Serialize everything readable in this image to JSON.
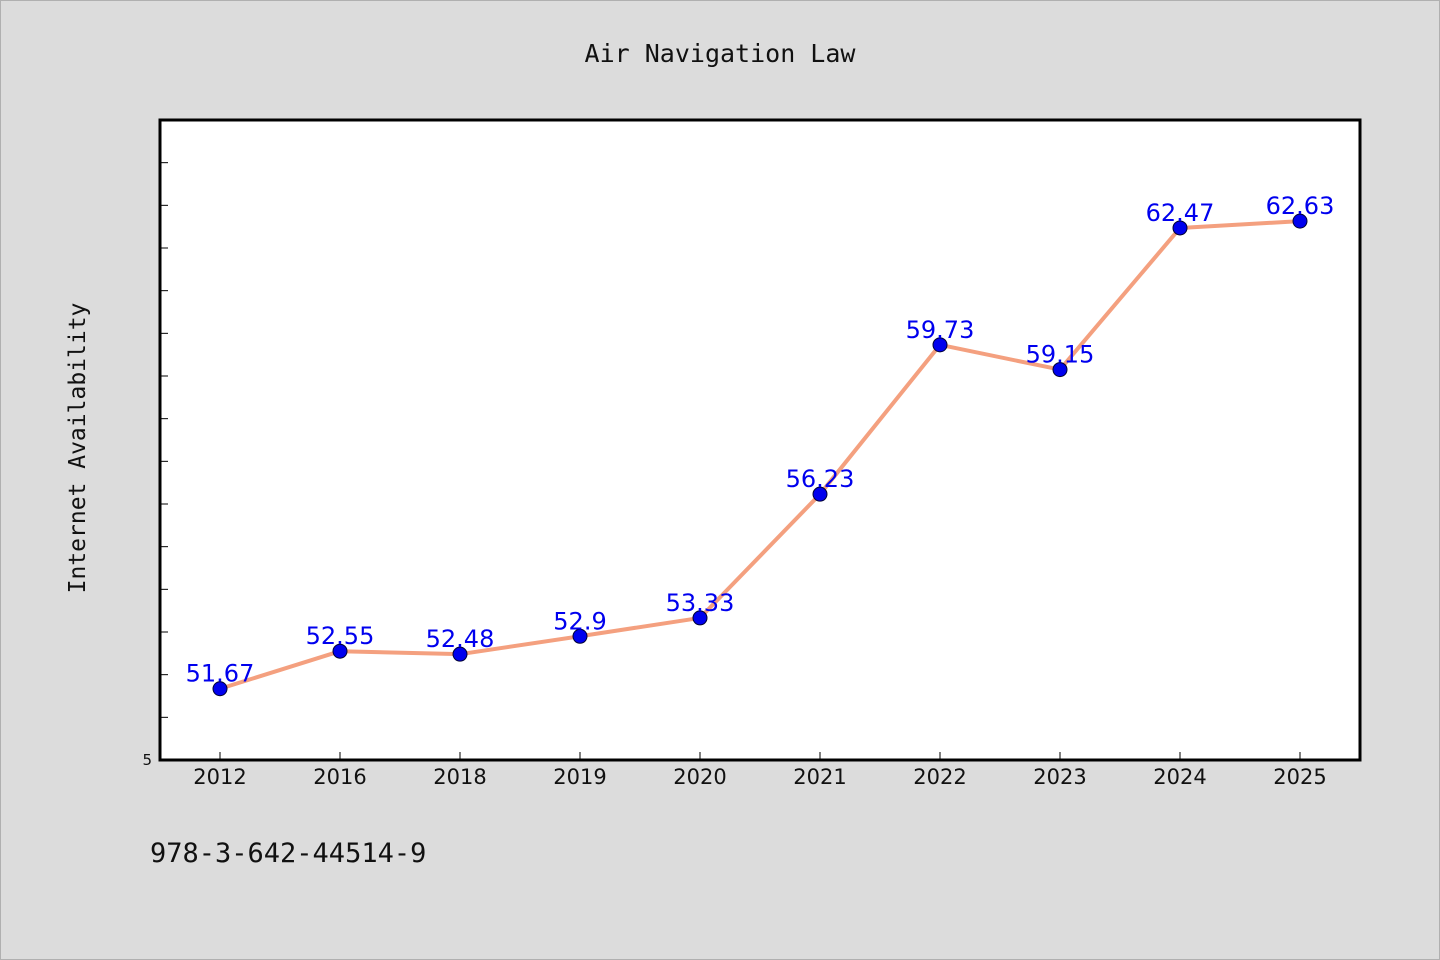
{
  "chart_data": {
    "type": "line",
    "title": "Air Navigation Law",
    "xlabel": "",
    "ylabel": "Internet Availability",
    "categories": [
      "2012",
      "2016",
      "2018",
      "2019",
      "2020",
      "2021",
      "2022",
      "2023",
      "2024",
      "2025"
    ],
    "series": [
      {
        "values": [
          51.67,
          52.55,
          52.48,
          52.9,
          53.33,
          56.23,
          59.73,
          59.15,
          62.47,
          62.63
        ],
        "line_color": "#f4a07f",
        "marker_color": "#0000ee"
      }
    ],
    "ylim": [
      50,
      65
    ],
    "y_tick_labels": [
      "5"
    ],
    "grid": false,
    "legend": "none",
    "data_labels": [
      "51.67",
      "52.55",
      "52.48",
      "52.9",
      "53.33",
      "56.23",
      "59.73",
      "59.15",
      "62.47",
      "62.63"
    ],
    "annotation": "978-3-642-44514-9"
  }
}
